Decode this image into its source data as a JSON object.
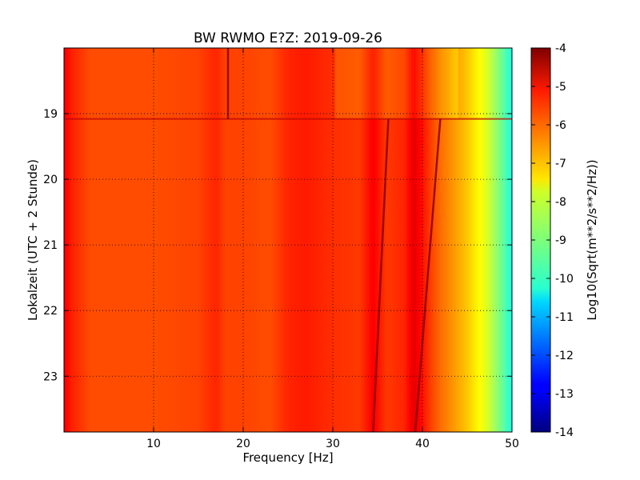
{
  "chart_data": {
    "type": "heatmap",
    "title": "BW RWMO E?Z: 2019-09-26",
    "xlabel": "Frequency [Hz]",
    "ylabel": "Lokalzeit (UTC + 2 Stunde)",
    "xlim": [
      0,
      50
    ],
    "ylim": [
      18.0,
      23.85
    ],
    "y_inverted": true,
    "x_ticks": [
      "10",
      "20",
      "30",
      "40",
      "50"
    ],
    "x_tick_values": [
      10,
      20,
      30,
      40,
      50
    ],
    "y_ticks": [
      "19",
      "20",
      "21",
      "22",
      "23"
    ],
    "y_tick_values": [
      19,
      20,
      21,
      22,
      23
    ],
    "grid": "dotted",
    "colorbar": {
      "label": "Log10(Sqrt(m**2/s**2/Hz))",
      "min": -14,
      "max": -4,
      "ticks": [
        "-4",
        "-5",
        "-6",
        "-7",
        "-8",
        "-9",
        "-10",
        "-11",
        "-12",
        "-13",
        "-14"
      ],
      "tick_values": [
        -4,
        -5,
        -6,
        -7,
        -8,
        -9,
        -10,
        -11,
        -12,
        -13,
        -14
      ],
      "colormap": "jet"
    },
    "spectrum_profile": {
      "frequency_hz": [
        0,
        1,
        3,
        10,
        15,
        17,
        18,
        20,
        23,
        25,
        27,
        30,
        33,
        34.5,
        36,
        38,
        39,
        40,
        41,
        42,
        43,
        44,
        45,
        46,
        47,
        48,
        49,
        50
      ],
      "level_log10": [
        -5.2,
        -5.6,
        -6.0,
        -6.0,
        -5.9,
        -5.6,
        -5.9,
        -5.9,
        -6.0,
        -5.6,
        -5.5,
        -5.7,
        -5.8,
        -5.2,
        -5.8,
        -5.6,
        -5.0,
        -5.4,
        -5.9,
        -6.3,
        -6.6,
        -6.9,
        -7.2,
        -7.6,
        -8.0,
        -8.6,
        -9.3,
        -10.0
      ]
    },
    "features": [
      {
        "label": "transition",
        "time": 19.08
      },
      {
        "label": "line",
        "frequency_hz_start": 36.2,
        "frequency_hz_end": 34.5,
        "time_start": 19.08,
        "time_end": 23.85
      },
      {
        "label": "line",
        "frequency_hz_start": 42.0,
        "frequency_hz_end": 39.2,
        "time_start": 19.08,
        "time_end": 23.85
      },
      {
        "label": "line",
        "frequency_hz_start": 18.3,
        "frequency_hz_end": 18.3,
        "time_start": 18.0,
        "time_end": 19.08
      }
    ]
  }
}
